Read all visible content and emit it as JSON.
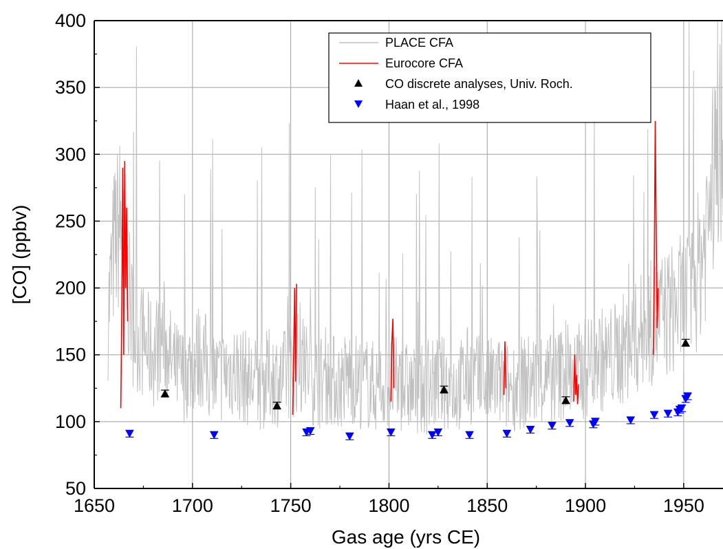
{
  "chart_data": {
    "type": "line",
    "xlabel": "Gas age (yrs CE)",
    "ylabel": "[CO] (ppbv)",
    "xlim": [
      1650,
      1970
    ],
    "ylim": [
      50,
      400
    ],
    "x_ticks": [
      1650,
      1700,
      1750,
      1800,
      1850,
      1900,
      1950
    ],
    "y_ticks": [
      50,
      100,
      150,
      200,
      250,
      300,
      350,
      400
    ],
    "grid": true,
    "legend_position": "top-right",
    "legend": [
      "PLACE CFA",
      "Eurocore CFA",
      "CO discrete analyses, Univ. Roch.",
      "Haan et al., 1998"
    ],
    "series": [
      {
        "name": "PLACE CFA",
        "kind": "line",
        "color": "#c0c0c0",
        "x": [
          1657,
          1660,
          1663,
          1666,
          1670,
          1675,
          1680,
          1685,
          1690,
          1695,
          1700,
          1705,
          1710,
          1715,
          1720,
          1725,
          1730,
          1735,
          1740,
          1745,
          1750,
          1755,
          1760,
          1765,
          1770,
          1775,
          1780,
          1785,
          1790,
          1795,
          1800,
          1805,
          1810,
          1815,
          1820,
          1825,
          1830,
          1835,
          1840,
          1845,
          1850,
          1855,
          1860,
          1865,
          1870,
          1875,
          1880,
          1885,
          1890,
          1895,
          1900,
          1905,
          1910,
          1915,
          1920,
          1925,
          1930,
          1935,
          1940,
          1945,
          1950,
          1955,
          1960,
          1965,
          1970
        ],
        "y": [
          180,
          230,
          250,
          210,
          170,
          160,
          150,
          165,
          140,
          135,
          145,
          150,
          130,
          135,
          140,
          135,
          130,
          128,
          135,
          130,
          140,
          145,
          135,
          130,
          132,
          128,
          135,
          130,
          128,
          125,
          130,
          128,
          125,
          122,
          125,
          130,
          128,
          125,
          135,
          130,
          128,
          130,
          125,
          128,
          130,
          132,
          130,
          132,
          140,
          135,
          140,
          150,
          145,
          150,
          155,
          160,
          170,
          175,
          180,
          185,
          190,
          200,
          230,
          280,
          330
        ]
      },
      {
        "name": "Eurocore CFA",
        "kind": "line",
        "color": "#ff0000",
        "segments": [
          {
            "x": [
              1663.5,
              1664,
              1664.5,
              1665,
              1665.5,
              1666,
              1666.5,
              1667
            ],
            "y": [
              110,
              180,
              290,
              150,
              295,
              200,
              260,
              175
            ]
          },
          {
            "x": [
              1751,
              1751.5,
              1752,
              1752.5,
              1753
            ],
            "y": [
              105,
              150,
              200,
              130,
              203
            ]
          },
          {
            "x": [
              1801,
              1801.5,
              1802,
              1802.5
            ],
            "y": [
              115,
              160,
              177,
              125
            ]
          },
          {
            "x": [
              1858.5,
              1859,
              1859.5
            ],
            "y": [
              120,
              160,
              125
            ]
          },
          {
            "x": [
              1894,
              1894.5,
              1895,
              1895.5,
              1896,
              1896.5
            ],
            "y": [
              115,
              150,
              120,
              135,
              113,
              128
            ]
          },
          {
            "x": [
              1934.5,
              1935,
              1935.5,
              1936,
              1936.5,
              1937
            ],
            "y": [
              150,
              210,
              325,
              240,
              170,
              200
            ]
          }
        ]
      },
      {
        "name": "CO discrete analyses, Univ. Roch.",
        "kind": "scatter",
        "marker": "triangle-up",
        "color": "#000000",
        "x": [
          1686,
          1743,
          1828,
          1890,
          1951
        ],
        "y": [
          121,
          112,
          124,
          116,
          159
        ]
      },
      {
        "name": "Haan et al., 1998",
        "kind": "scatter",
        "marker": "triangle-down",
        "color": "#0000ff",
        "x": [
          1668,
          1711,
          1758,
          1760,
          1780,
          1801,
          1822,
          1825,
          1841,
          1860,
          1872,
          1883,
          1892,
          1904,
          1905,
          1923,
          1935,
          1942,
          1947,
          1948,
          1949,
          1951,
          1952
        ],
        "y": [
          91,
          90,
          92,
          93,
          89,
          92,
          90,
          92,
          90,
          91,
          94,
          97,
          99,
          98,
          100,
          101,
          105,
          106,
          107,
          109,
          110,
          117,
          119
        ]
      }
    ]
  }
}
